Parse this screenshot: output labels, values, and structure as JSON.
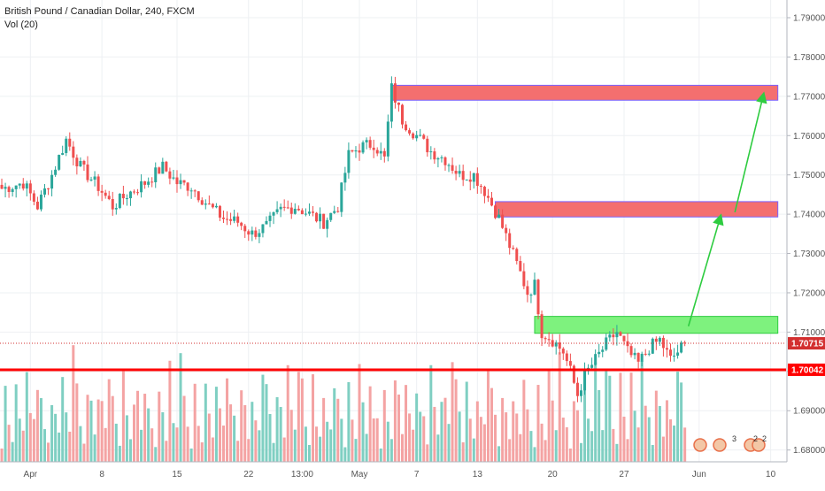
{
  "legend": {
    "title": "British Pound / Canadian Dollar, 240, FXCM",
    "volume": "Vol (20)"
  },
  "chart_data": {
    "type": "candlestick",
    "symbol": "British Pound / Canadian Dollar",
    "timeframe": "240",
    "source": "FXCM",
    "y_axis": {
      "range": [
        1.677,
        1.7945
      ],
      "ticks": [
        "1.68000",
        "1.69000",
        "1.70000",
        "1.71000",
        "1.72000",
        "1.73000",
        "1.74000",
        "1.75000",
        "1.76000",
        "1.77000",
        "1.78000",
        "1.79000"
      ]
    },
    "x_axis": {
      "ticks": [
        "Apr",
        "8",
        "15",
        "22",
        "13:00",
        "May",
        "7",
        "13",
        "20",
        "27",
        "Jun",
        "10"
      ],
      "tick_bars": [
        8,
        28,
        49,
        69,
        84,
        100,
        116,
        133,
        154,
        174,
        195,
        215
      ]
    },
    "price_badges": [
      {
        "label": "1.70715",
        "value": 1.70715,
        "color": "#d32f2f"
      },
      {
        "label": "1.70042",
        "value": 1.70042,
        "color": "#ff0000"
      }
    ],
    "zones": [
      {
        "name": "resistance-top",
        "from_bar": 109,
        "to_bar": 217,
        "low": 1.769,
        "high": 1.7728,
        "fill": "#f46f6f",
        "border": "#7b61ff"
      },
      {
        "name": "resistance-mid",
        "from_bar": 138,
        "to_bar": 217,
        "low": 1.7393,
        "high": 1.7432,
        "fill": "#f46f6f",
        "border": "#7b61ff"
      },
      {
        "name": "support",
        "from_bar": 149,
        "to_bar": 217,
        "low": 1.7097,
        "high": 1.714,
        "fill": "#7ef27e",
        "border": "#2ecc40"
      }
    ],
    "lines": [
      {
        "name": "support-line",
        "value": 1.70042,
        "color": "#ff0000",
        "width": 3
      },
      {
        "name": "last-price-line",
        "value": 1.70715,
        "color": "#d32f2f",
        "dotted": true
      }
    ],
    "arrows": [
      {
        "from": [
          192,
          1.7115
        ],
        "to": [
          201,
          1.7395
        ]
      },
      {
        "from": [
          205,
          1.7405
        ],
        "to": [
          213,
          1.7705
        ]
      }
    ],
    "anchors": [
      [
        0,
        1.7465
      ],
      [
        6,
        1.748
      ],
      [
        10,
        1.742
      ],
      [
        14,
        1.75
      ],
      [
        18,
        1.759
      ],
      [
        22,
        1.752
      ],
      [
        27,
        1.747
      ],
      [
        31,
        1.742
      ],
      [
        35,
        1.745
      ],
      [
        40,
        1.748
      ],
      [
        45,
        1.752
      ],
      [
        49,
        1.748
      ],
      [
        53,
        1.747
      ],
      [
        58,
        1.742
      ],
      [
        62,
        1.739
      ],
      [
        66,
        1.738
      ],
      [
        70,
        1.735
      ],
      [
        74,
        1.737
      ],
      [
        78,
        1.741
      ],
      [
        82,
        1.742
      ],
      [
        86,
        1.74
      ],
      [
        90,
        1.738
      ],
      [
        94,
        1.742
      ],
      [
        97,
        1.755
      ],
      [
        100,
        1.757
      ],
      [
        104,
        1.758
      ],
      [
        107,
        1.754
      ],
      [
        109,
        1.772
      ],
      [
        112,
        1.764
      ],
      [
        116,
        1.76
      ],
      [
        120,
        1.756
      ],
      [
        124,
        1.754
      ],
      [
        128,
        1.75
      ],
      [
        132,
        1.75
      ],
      [
        135,
        1.746
      ],
      [
        139,
        1.739
      ],
      [
        142,
        1.732
      ],
      [
        145,
        1.725
      ],
      [
        147,
        1.72
      ],
      [
        149,
        1.722
      ],
      [
        151,
        1.71
      ],
      [
        154,
        1.708
      ],
      [
        157,
        1.705
      ],
      [
        159,
        1.7
      ],
      [
        161,
        1.694
      ],
      [
        163,
        1.699
      ],
      [
        166,
        1.703
      ],
      [
        169,
        1.707
      ],
      [
        172,
        1.71
      ],
      [
        175,
        1.705
      ],
      [
        178,
        1.702
      ],
      [
        181,
        1.706
      ],
      [
        184,
        1.708
      ],
      [
        187,
        1.703
      ],
      [
        190,
        1.706
      ],
      [
        191,
        1.7072
      ]
    ],
    "volume_panel": {
      "label": "Vol (20)",
      "colors": {
        "up": "#7fcfc2",
        "down": "#f4a3a3"
      }
    },
    "colors": {
      "up": "#2aa69a",
      "down": "#ef4f4f"
    },
    "indicator_badges": [
      "3",
      "2",
      "2"
    ]
  }
}
